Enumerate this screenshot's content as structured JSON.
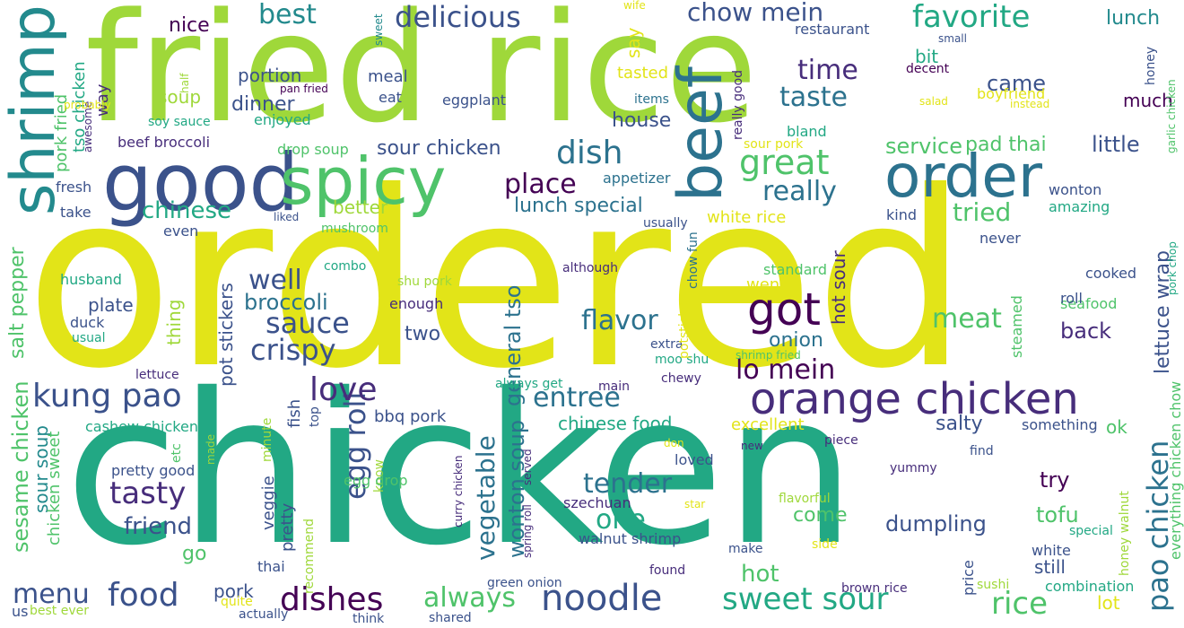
{
  "palette": {
    "lime": "#9fd83a",
    "yellow": "#e2e418",
    "green": "#4fc36a",
    "teal": "#22a884",
    "cyan": "#238a8d",
    "blue": "#2c728e",
    "indigo": "#3b528b",
    "violet": "#472d7b",
    "purple": "#440154"
  },
  "words": [
    {
      "text": "fried rice",
      "color": "lime"
    },
    {
      "text": "ordered",
      "color": "yellow"
    },
    {
      "text": "chicken",
      "color": "teal"
    },
    {
      "text": "shrimp",
      "color": "cyan"
    },
    {
      "text": "good",
      "color": "indigo"
    },
    {
      "text": "spicy",
      "color": "green"
    },
    {
      "text": "beef",
      "color": "blue"
    },
    {
      "text": "order",
      "color": "blue"
    },
    {
      "text": "orange chicken",
      "color": "violet"
    },
    {
      "text": "got",
      "color": "purple"
    },
    {
      "text": "food",
      "color": "indigo"
    },
    {
      "text": "noodle",
      "color": "indigo"
    },
    {
      "text": "sweet sour",
      "color": "teal"
    },
    {
      "text": "dishes",
      "color": "purple"
    },
    {
      "text": "rice",
      "color": "green"
    },
    {
      "text": "kung pao",
      "color": "indigo"
    },
    {
      "text": "egg roll",
      "color": "indigo"
    },
    {
      "text": "pao chicken",
      "color": "blue"
    },
    {
      "text": "vegetable",
      "color": "blue"
    },
    {
      "text": "great",
      "color": "green"
    },
    {
      "text": "dish",
      "color": "blue"
    },
    {
      "text": "love",
      "color": "violet"
    },
    {
      "text": "tasty",
      "color": "violet"
    },
    {
      "text": "sauce",
      "color": "indigo"
    },
    {
      "text": "crispy",
      "color": "indigo"
    },
    {
      "text": "menu",
      "color": "indigo"
    },
    {
      "text": "always",
      "color": "green"
    },
    {
      "text": "one",
      "color": "teal"
    },
    {
      "text": "delicious",
      "color": "indigo"
    },
    {
      "text": "favorite",
      "color": "teal"
    },
    {
      "text": "chow mein",
      "color": "indigo"
    },
    {
      "text": "best",
      "color": "cyan"
    },
    {
      "text": "place",
      "color": "purple"
    },
    {
      "text": "chinese",
      "color": "teal"
    },
    {
      "text": "well",
      "color": "indigo"
    },
    {
      "text": "flavor",
      "color": "blue"
    },
    {
      "text": "meat",
      "color": "green"
    },
    {
      "text": "entree",
      "color": "blue"
    },
    {
      "text": "tender",
      "color": "blue"
    },
    {
      "text": "lo mein",
      "color": "purple"
    },
    {
      "text": "tried",
      "color": "green"
    },
    {
      "text": "really",
      "color": "blue"
    },
    {
      "text": "time",
      "color": "violet"
    },
    {
      "text": "taste",
      "color": "blue"
    },
    {
      "text": "friend",
      "color": "indigo"
    },
    {
      "text": "hot",
      "color": "green"
    },
    {
      "text": "dumpling",
      "color": "indigo"
    },
    {
      "text": "broccoli",
      "color": "blue"
    },
    {
      "text": "lettuce wrap",
      "color": "indigo"
    },
    {
      "text": "everything chicken chow",
      "color": "green"
    },
    {
      "text": "wonton soup",
      "color": "blue"
    },
    {
      "text": "general tso",
      "color": "blue"
    },
    {
      "text": "sesame chicken",
      "color": "green"
    },
    {
      "text": "salt pepper",
      "color": "green"
    },
    {
      "text": "pot stickers",
      "color": "indigo"
    },
    {
      "text": "lunch special",
      "color": "blue"
    },
    {
      "text": "sour chicken",
      "color": "indigo"
    },
    {
      "text": "two",
      "color": "indigo"
    },
    {
      "text": "onion",
      "color": "blue"
    },
    {
      "text": "back",
      "color": "violet"
    },
    {
      "text": "came",
      "color": "indigo"
    },
    {
      "text": "little",
      "color": "indigo"
    },
    {
      "text": "service",
      "color": "green"
    },
    {
      "text": "pad thai",
      "color": "green"
    },
    {
      "text": "try",
      "color": "purple"
    },
    {
      "text": "tofu",
      "color": "green"
    },
    {
      "text": "come",
      "color": "green"
    },
    {
      "text": "go",
      "color": "green"
    },
    {
      "text": "soup",
      "color": "lime"
    },
    {
      "text": "dinner",
      "color": "indigo"
    },
    {
      "text": "portion",
      "color": "indigo"
    },
    {
      "text": "nice",
      "color": "purple"
    },
    {
      "text": "plate",
      "color": "indigo"
    },
    {
      "text": "pork",
      "color": "indigo"
    },
    {
      "text": "fish",
      "color": "indigo"
    },
    {
      "text": "thing",
      "color": "lime"
    },
    {
      "text": "bbq pork",
      "color": "indigo"
    },
    {
      "text": "chinese food",
      "color": "teal"
    },
    {
      "text": "excellent",
      "color": "yellow"
    },
    {
      "text": "salty",
      "color": "indigo"
    },
    {
      "text": "ok",
      "color": "green"
    },
    {
      "text": "lot",
      "color": "yellow"
    },
    {
      "text": "still",
      "color": "indigo"
    },
    {
      "text": "white rice",
      "color": "yellow"
    },
    {
      "text": "better",
      "color": "lime"
    },
    {
      "text": "house",
      "color": "indigo"
    },
    {
      "text": "much",
      "color": "purple"
    },
    {
      "text": "bit",
      "color": "teal"
    },
    {
      "text": "lunch",
      "color": "cyan"
    },
    {
      "text": "went",
      "color": "yellow"
    },
    {
      "text": "hot sour",
      "color": "violet"
    },
    {
      "text": "sour soup",
      "color": "cyan"
    },
    {
      "text": "chicken sweet",
      "color": "green"
    },
    {
      "text": "pork fried",
      "color": "green"
    },
    {
      "text": "tso chicken",
      "color": "teal"
    },
    {
      "text": "way",
      "color": "violet"
    },
    {
      "text": "meal",
      "color": "indigo"
    },
    {
      "text": "eat",
      "color": "indigo"
    },
    {
      "text": "eggplant",
      "color": "indigo"
    },
    {
      "text": "enjoyed",
      "color": "teal"
    },
    {
      "text": "pan fried",
      "color": "purple"
    },
    {
      "text": "soy sauce",
      "color": "teal"
    },
    {
      "text": "beef broccoli",
      "color": "violet"
    },
    {
      "text": "drop soup",
      "color": "green"
    },
    {
      "text": "fresh",
      "color": "indigo"
    },
    {
      "text": "take",
      "color": "indigo"
    },
    {
      "text": "even",
      "color": "indigo"
    },
    {
      "text": "liked",
      "color": "indigo"
    },
    {
      "text": "mushroom",
      "color": "green"
    },
    {
      "text": "husband",
      "color": "teal"
    },
    {
      "text": "duck",
      "color": "indigo"
    },
    {
      "text": "usual",
      "color": "teal"
    },
    {
      "text": "combo",
      "color": "teal"
    },
    {
      "text": "shu pork",
      "color": "lime"
    },
    {
      "text": "enough",
      "color": "violet"
    },
    {
      "text": "although",
      "color": "violet"
    },
    {
      "text": "extra",
      "color": "indigo"
    },
    {
      "text": "moo shu",
      "color": "teal"
    },
    {
      "text": "chow fun",
      "color": "blue"
    },
    {
      "text": "potsticker",
      "color": "yellow"
    },
    {
      "text": "lettuce",
      "color": "violet"
    },
    {
      "text": "always get",
      "color": "teal"
    },
    {
      "text": "main",
      "color": "violet"
    },
    {
      "text": "chewy",
      "color": "violet"
    },
    {
      "text": "etc",
      "color": "green"
    },
    {
      "text": "minute",
      "color": "lime"
    },
    {
      "text": "top",
      "color": "indigo"
    },
    {
      "text": "cashew chicken",
      "color": "teal"
    },
    {
      "text": "pretty good",
      "color": "indigo"
    },
    {
      "text": "veggie",
      "color": "indigo"
    },
    {
      "text": "pretty",
      "color": "indigo"
    },
    {
      "text": "know",
      "color": "lime"
    },
    {
      "text": "egg drop",
      "color": "green"
    },
    {
      "text": "recommend",
      "color": "lime"
    },
    {
      "text": "made",
      "color": "lime"
    },
    {
      "text": "thai",
      "color": "indigo"
    },
    {
      "text": "us",
      "color": "indigo"
    },
    {
      "text": "best ever",
      "color": "lime"
    },
    {
      "text": "actually",
      "color": "indigo"
    },
    {
      "text": "quite",
      "color": "yellow"
    },
    {
      "text": "think",
      "color": "indigo"
    },
    {
      "text": "shared",
      "color": "indigo"
    },
    {
      "text": "green onion",
      "color": "indigo"
    },
    {
      "text": "curry chicken",
      "color": "violet"
    },
    {
      "text": "spring roll",
      "color": "violet"
    },
    {
      "text": "served",
      "color": "violet"
    },
    {
      "text": "szechuan",
      "color": "violet"
    },
    {
      "text": "walnut shrimp",
      "color": "indigo"
    },
    {
      "text": "loved",
      "color": "indigo"
    },
    {
      "text": "don",
      "color": "yellow"
    },
    {
      "text": "yummy",
      "color": "violet"
    },
    {
      "text": "flavorful",
      "color": "lime"
    },
    {
      "text": "star",
      "color": "yellow"
    },
    {
      "text": "make",
      "color": "indigo"
    },
    {
      "text": "side",
      "color": "yellow"
    },
    {
      "text": "found",
      "color": "violet"
    },
    {
      "text": "brown rice",
      "color": "violet"
    },
    {
      "text": "price",
      "color": "indigo"
    },
    {
      "text": "sushi",
      "color": "lime"
    },
    {
      "text": "combination",
      "color": "teal"
    },
    {
      "text": "special",
      "color": "teal"
    },
    {
      "text": "white",
      "color": "indigo"
    },
    {
      "text": "honey walnut",
      "color": "lime"
    },
    {
      "text": "piece",
      "color": "violet"
    },
    {
      "text": "new",
      "color": "violet"
    },
    {
      "text": "find",
      "color": "indigo"
    },
    {
      "text": "something",
      "color": "indigo"
    },
    {
      "text": "steamed",
      "color": "green"
    },
    {
      "text": "seafood",
      "color": "green"
    },
    {
      "text": "roll",
      "color": "indigo"
    },
    {
      "text": "cooked",
      "color": "indigo"
    },
    {
      "text": "pork chop",
      "color": "teal"
    },
    {
      "text": "never",
      "color": "indigo"
    },
    {
      "text": "kind",
      "color": "indigo"
    },
    {
      "text": "amazing",
      "color": "teal"
    },
    {
      "text": "wonton",
      "color": "indigo"
    },
    {
      "text": "standard",
      "color": "green"
    },
    {
      "text": "shrimp fried",
      "color": "green"
    },
    {
      "text": "sour pork",
      "color": "yellow"
    },
    {
      "text": "bland",
      "color": "teal"
    },
    {
      "text": "really good",
      "color": "violet"
    },
    {
      "text": "appetizer",
      "color": "blue"
    },
    {
      "text": "usually",
      "color": "indigo"
    },
    {
      "text": "items",
      "color": "blue"
    },
    {
      "text": "tasted",
      "color": "yellow"
    },
    {
      "text": "say",
      "color": "yellow"
    },
    {
      "text": "sweet",
      "color": "cyan"
    },
    {
      "text": "wife",
      "color": "yellow"
    },
    {
      "text": "restaurant",
      "color": "indigo"
    },
    {
      "text": "decent",
      "color": "purple"
    },
    {
      "text": "small",
      "color": "indigo"
    },
    {
      "text": "boyfriend",
      "color": "yellow"
    },
    {
      "text": "salad",
      "color": "yellow"
    },
    {
      "text": "instead",
      "color": "yellow"
    },
    {
      "text": "honey",
      "color": "indigo"
    },
    {
      "text": "garlic chicken",
      "color": "green"
    },
    {
      "text": "awesome",
      "color": "violet"
    },
    {
      "text": "probably",
      "color": "yellow"
    },
    {
      "text": "half",
      "color": "lime"
    }
  ]
}
